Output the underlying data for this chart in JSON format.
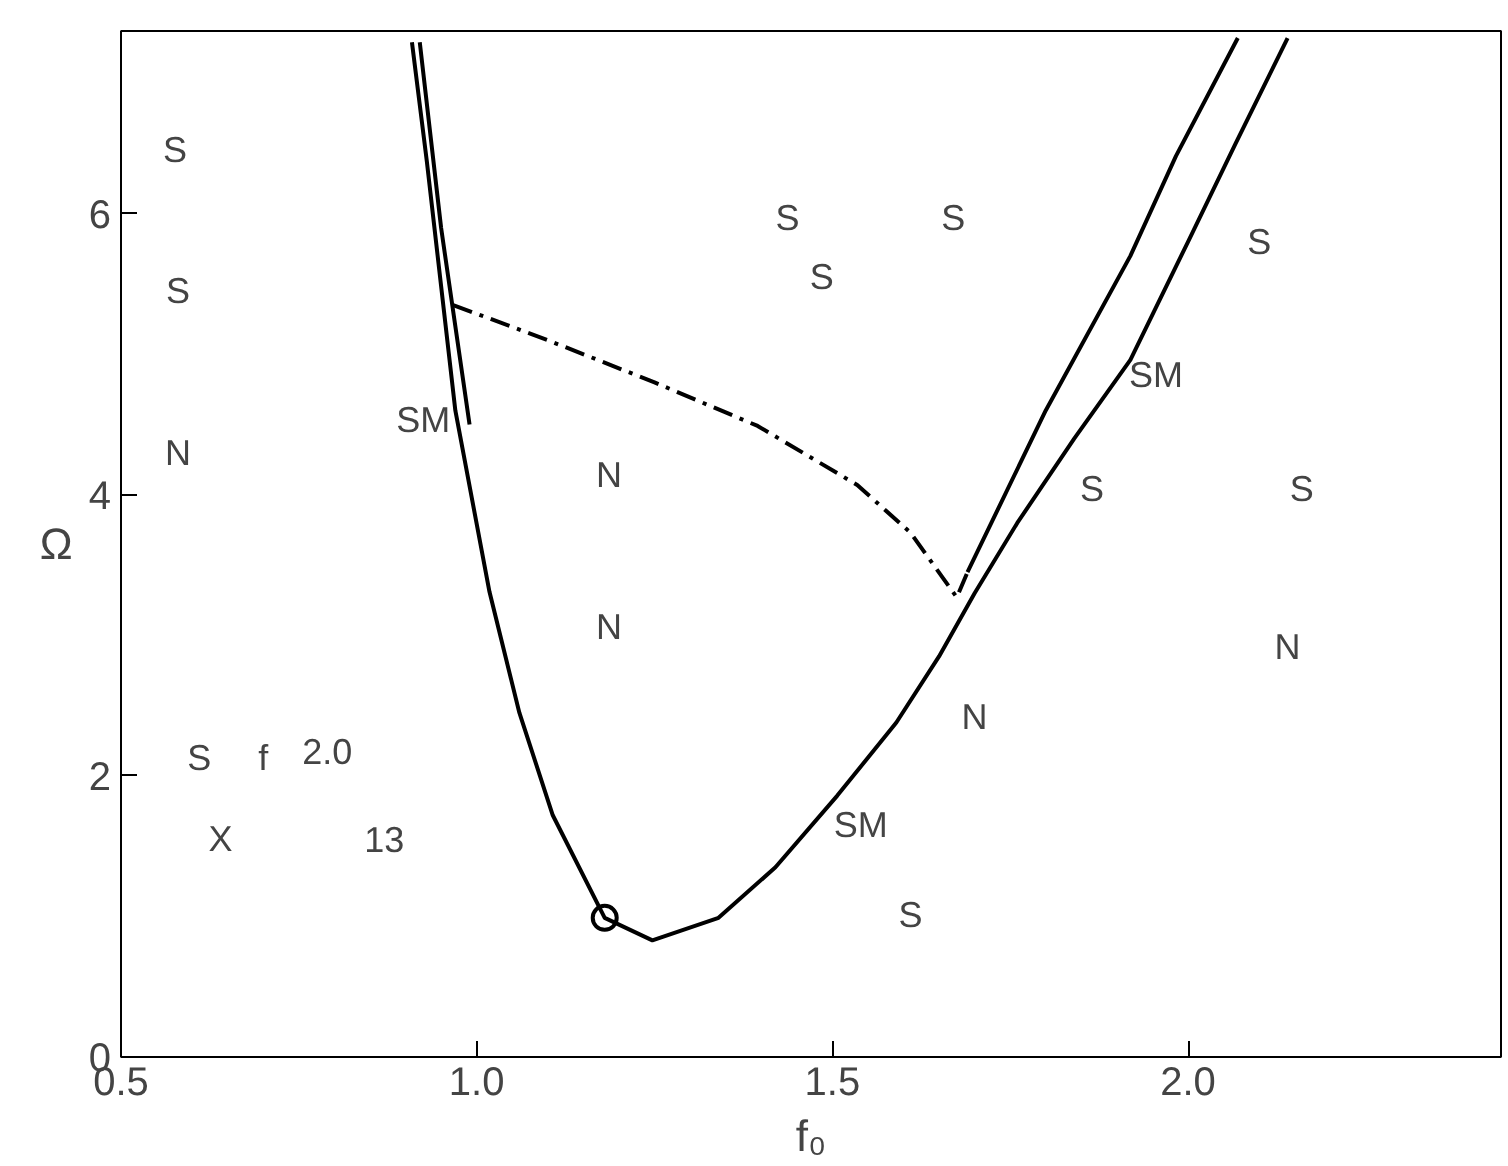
{
  "chart_data": {
    "type": "line",
    "xlabel": "f₀",
    "ylabel": "Ω",
    "xlim": [
      0.5,
      2.44
    ],
    "ylim": [
      0,
      7.3
    ],
    "xticks": [
      {
        "value": 0.5,
        "label": "0.5"
      },
      {
        "value": 1.0,
        "label": "1.0"
      },
      {
        "value": 1.5,
        "label": "1.5"
      },
      {
        "value": 2.0,
        "label": "2.0"
      }
    ],
    "yticks": [
      0,
      2,
      4,
      6
    ],
    "grid": false,
    "marker": "none",
    "line_style": "solid",
    "series": [
      {
        "color": "#000000",
        "x": [
          0.909,
          0.93,
          0.97,
          1.018,
          1.06,
          1.107,
          1.18,
          1.247,
          1.34,
          1.42,
          1.507,
          1.59,
          1.65,
          1.7,
          1.76,
          1.84,
          1.919,
          2.0,
          2.067,
          2.14
        ],
        "values": [
          7.22,
          6.37,
          4.6,
          3.31,
          2.45,
          1.72,
          0.99,
          0.83,
          0.99,
          1.35,
          1.86,
          2.38,
          2.85,
          3.3,
          3.8,
          4.4,
          4.96,
          5.8,
          6.5,
          7.25
        ]
      },
      {
        "color": "#000000",
        "x": [
          1.69,
          1.8,
          1.919,
          1.983,
          2.07
        ],
        "values": [
          3.45,
          4.6,
          5.7,
          6.41,
          7.25
        ]
      },
      {
        "color": "#000000",
        "x": [
          0.92,
          0.95,
          0.99
        ],
        "values": [
          7.22,
          5.9,
          4.5
        ]
      },
      {
        "color": "#000000",
        "line_style": "dashed",
        "x": [
          0.967,
          1.1,
          1.25,
          1.395,
          1.535,
          1.61,
          1.675,
          1.69
        ],
        "values": [
          5.35,
          5.1,
          4.8,
          4.49,
          4.07,
          3.73,
          3.27,
          3.45
        ]
      },
      {
        "type": "scatter",
        "marker": "circle",
        "color": "#000000",
        "x": [
          1.18
        ],
        "values": [
          0.99
        ]
      }
    ],
    "annotations": [
      "SM",
      "SM",
      "SM",
      "S",
      "S",
      "N",
      "S",
      "f",
      "2.0",
      "X",
      "13",
      "N",
      "N",
      "S",
      "S",
      "S",
      "S",
      "S",
      "S",
      "N",
      "N",
      "S"
    ]
  }
}
